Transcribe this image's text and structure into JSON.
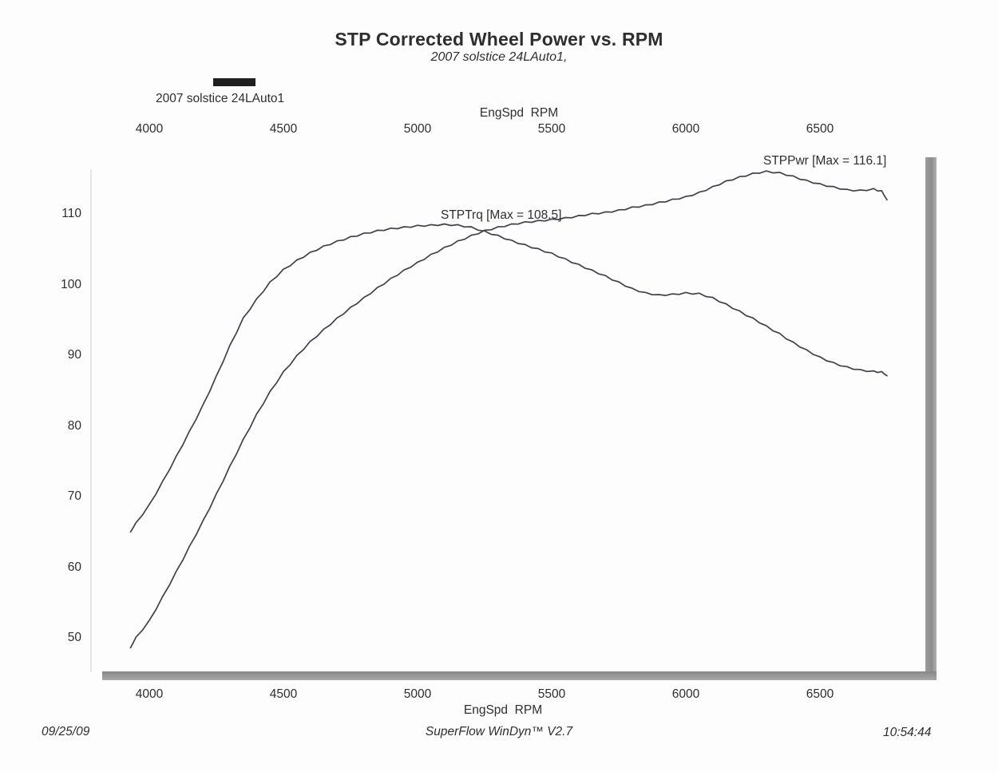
{
  "header": {
    "title": "STP Corrected Wheel Power vs. RPM",
    "subtitle": "2007 solstice 24LAuto1,"
  },
  "legend": {
    "label": "2007 solstice 24LAuto1",
    "swatch_color": "#1f1f1f"
  },
  "axes": {
    "top_title": "EngSpd  RPM",
    "bottom_title": "EngSpd  RPM"
  },
  "annotations": {
    "power_label": "STPPwr [Max = 116.1]",
    "torque_label": "STPTrq [Max = 108.5]"
  },
  "footer": {
    "date": "09/25/09",
    "software": "SuperFlow WinDyn™ V2.7",
    "time": "10:54:44"
  },
  "colors": {
    "curve": "#41414a",
    "axis_bar": "#9a9a9a",
    "text": "#2e2e2e"
  },
  "chart_data": {
    "type": "line",
    "title": "STP Corrected Wheel Power vs. RPM",
    "subtitle": "2007 solstice 24LAuto1,",
    "xlabel": "EngSpd RPM",
    "ylabel": "",
    "xlim": [
      3900,
      6900
    ],
    "ylim": [
      45,
      118
    ],
    "x_ticks": [
      4000,
      4500,
      5000,
      5500,
      6000,
      6500
    ],
    "y_ticks": [
      110,
      100,
      90,
      80,
      70,
      60,
      50
    ],
    "grid": false,
    "legend_position": "top-left",
    "x": [
      3930,
      3950,
      4000,
      4050,
      4100,
      4150,
      4200,
      4250,
      4300,
      4350,
      4400,
      4450,
      4500,
      4550,
      4600,
      4650,
      4700,
      4750,
      4800,
      4850,
      4900,
      4950,
      5000,
      5050,
      5100,
      5150,
      5200,
      5250,
      5300,
      5350,
      5400,
      5450,
      5500,
      5550,
      5600,
      5650,
      5700,
      5750,
      5800,
      5850,
      5900,
      5950,
      6000,
      6050,
      6100,
      6150,
      6200,
      6250,
      6300,
      6350,
      6400,
      6450,
      6500,
      6550,
      6600,
      6650,
      6700,
      6730,
      6750
    ],
    "series": [
      {
        "name": "STPPwr",
        "max": 116.1,
        "values": [
          48.6,
          50.0,
          52.4,
          55.8,
          59.3,
          62.9,
          66.5,
          70.3,
          74.2,
          78.0,
          81.6,
          84.8,
          87.6,
          89.9,
          91.9,
          93.6,
          95.2,
          96.7,
          98.1,
          99.5,
          100.8,
          102.0,
          103.1,
          104.2,
          105.2,
          106.1,
          106.9,
          107.6,
          108.1,
          108.5,
          108.8,
          109.0,
          109.2,
          109.4,
          109.7,
          110.0,
          110.2,
          110.5,
          110.9,
          111.2,
          111.6,
          112.0,
          112.4,
          113.0,
          113.8,
          114.6,
          115.2,
          115.7,
          116.0,
          115.8,
          115.3,
          114.7,
          114.2,
          113.8,
          113.4,
          113.3,
          113.5,
          113.2,
          112.0
        ]
      },
      {
        "name": "STPTrq",
        "max": 108.5,
        "values": [
          65.0,
          66.2,
          68.8,
          72.1,
          75.6,
          79.2,
          82.9,
          87.0,
          91.3,
          95.2,
          97.9,
          100.3,
          102.1,
          103.4,
          104.5,
          105.4,
          106.1,
          106.7,
          107.2,
          107.6,
          107.9,
          108.1,
          108.3,
          108.4,
          108.5,
          108.4,
          108.1,
          107.5,
          106.9,
          106.2,
          105.6,
          105.0,
          104.4,
          103.6,
          102.8,
          102.0,
          101.2,
          100.3,
          99.4,
          98.8,
          98.5,
          98.6,
          98.8,
          98.7,
          98.1,
          97.2,
          96.2,
          95.2,
          94.1,
          93.0,
          91.8,
          90.7,
          89.7,
          88.9,
          88.3,
          87.9,
          87.7,
          87.6,
          87.1
        ]
      }
    ]
  }
}
